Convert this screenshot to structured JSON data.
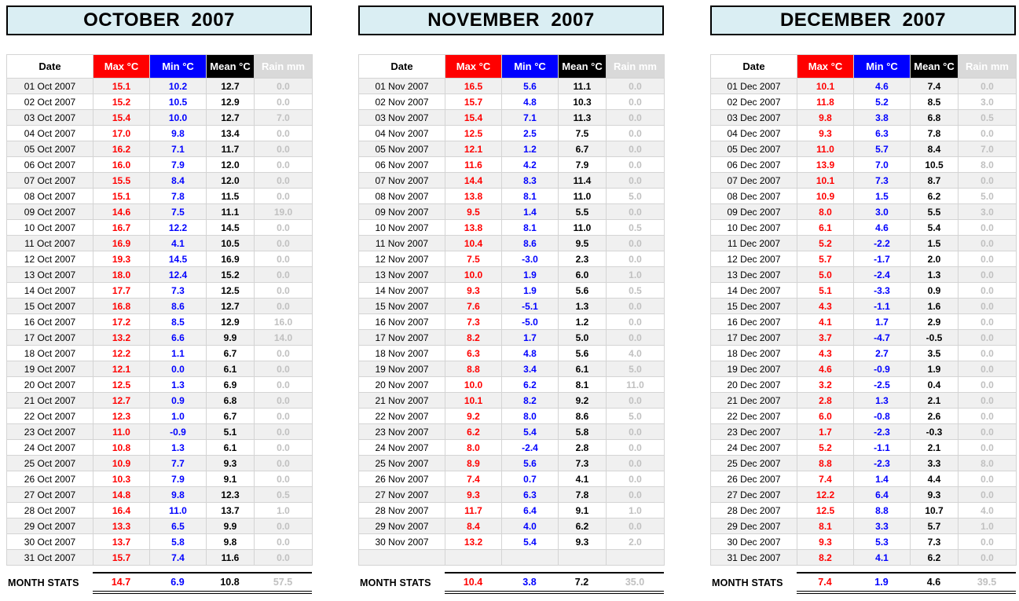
{
  "columns": [
    "Date",
    "Max °C",
    "Min °C",
    "Mean °C",
    "Rain mm"
  ],
  "stats_label": "MONTH STATS",
  "colors": {
    "max_red": "#ff0000",
    "min_blue": "#0000ff",
    "mean_black": "#000000",
    "rain_gray_text": "#c0c0c0",
    "rain_header_bg": "#d9d9d9",
    "title_bg": "#daeef3",
    "row_stripe": "#f0f0f0",
    "grid_line": "#d4d4d4"
  },
  "months": [
    {
      "title": "OCTOBER  2007",
      "rows": [
        [
          "01 Oct 2007",
          "15.1",
          "10.2",
          "12.7",
          "0.0"
        ],
        [
          "02 Oct 2007",
          "15.2",
          "10.5",
          "12.9",
          "0.0"
        ],
        [
          "03 Oct 2007",
          "15.4",
          "10.0",
          "12.7",
          "7.0"
        ],
        [
          "04 Oct 2007",
          "17.0",
          "9.8",
          "13.4",
          "0.0"
        ],
        [
          "05 Oct 2007",
          "16.2",
          "7.1",
          "11.7",
          "0.0"
        ],
        [
          "06 Oct 2007",
          "16.0",
          "7.9",
          "12.0",
          "0.0"
        ],
        [
          "07 Oct 2007",
          "15.5",
          "8.4",
          "12.0",
          "0.0"
        ],
        [
          "08 Oct 2007",
          "15.1",
          "7.8",
          "11.5",
          "0.0"
        ],
        [
          "09 Oct 2007",
          "14.6",
          "7.5",
          "11.1",
          "19.0"
        ],
        [
          "10 Oct 2007",
          "16.7",
          "12.2",
          "14.5",
          "0.0"
        ],
        [
          "11 Oct 2007",
          "16.9",
          "4.1",
          "10.5",
          "0.0"
        ],
        [
          "12 Oct 2007",
          "19.3",
          "14.5",
          "16.9",
          "0.0"
        ],
        [
          "13 Oct 2007",
          "18.0",
          "12.4",
          "15.2",
          "0.0"
        ],
        [
          "14 Oct 2007",
          "17.7",
          "7.3",
          "12.5",
          "0.0"
        ],
        [
          "15 Oct 2007",
          "16.8",
          "8.6",
          "12.7",
          "0.0"
        ],
        [
          "16 Oct 2007",
          "17.2",
          "8.5",
          "12.9",
          "16.0"
        ],
        [
          "17 Oct 2007",
          "13.2",
          "6.6",
          "9.9",
          "14.0"
        ],
        [
          "18 Oct 2007",
          "12.2",
          "1.1",
          "6.7",
          "0.0"
        ],
        [
          "19 Oct 2007",
          "12.1",
          "0.0",
          "6.1",
          "0.0"
        ],
        [
          "20 Oct 2007",
          "12.5",
          "1.3",
          "6.9",
          "0.0"
        ],
        [
          "21 Oct 2007",
          "12.7",
          "0.9",
          "6.8",
          "0.0"
        ],
        [
          "22 Oct 2007",
          "12.3",
          "1.0",
          "6.7",
          "0.0"
        ],
        [
          "23 Oct 2007",
          "11.0",
          "-0.9",
          "5.1",
          "0.0"
        ],
        [
          "24 Oct 2007",
          "10.8",
          "1.3",
          "6.1",
          "0.0"
        ],
        [
          "25 Oct 2007",
          "10.9",
          "7.7",
          "9.3",
          "0.0"
        ],
        [
          "26 Oct 2007",
          "10.3",
          "7.9",
          "9.1",
          "0.0"
        ],
        [
          "27 Oct 2007",
          "14.8",
          "9.8",
          "12.3",
          "0.5"
        ],
        [
          "28 Oct 2007",
          "16.4",
          "11.0",
          "13.7",
          "1.0"
        ],
        [
          "29 Oct 2007",
          "13.3",
          "6.5",
          "9.9",
          "0.0"
        ],
        [
          "30 Oct 2007",
          "13.7",
          "5.8",
          "9.8",
          "0.0"
        ],
        [
          "31 Oct 2007",
          "15.7",
          "7.4",
          "11.6",
          "0.0"
        ]
      ],
      "stats": {
        "max": "14.7",
        "min": "6.9",
        "mean": "10.8",
        "rain": "57.5"
      }
    },
    {
      "title": "NOVEMBER  2007",
      "rows": [
        [
          "01 Nov 2007",
          "16.5",
          "5.6",
          "11.1",
          "0.0"
        ],
        [
          "02 Nov 2007",
          "15.7",
          "4.8",
          "10.3",
          "0.0"
        ],
        [
          "03 Nov 2007",
          "15.4",
          "7.1",
          "11.3",
          "0.0"
        ],
        [
          "04 Nov 2007",
          "12.5",
          "2.5",
          "7.5",
          "0.0"
        ],
        [
          "05 Nov 2007",
          "12.1",
          "1.2",
          "6.7",
          "0.0"
        ],
        [
          "06 Nov 2007",
          "11.6",
          "4.2",
          "7.9",
          "0.0"
        ],
        [
          "07 Nov 2007",
          "14.4",
          "8.3",
          "11.4",
          "0.0"
        ],
        [
          "08 Nov 2007",
          "13.8",
          "8.1",
          "11.0",
          "5.0"
        ],
        [
          "09 Nov 2007",
          "9.5",
          "1.4",
          "5.5",
          "0.0"
        ],
        [
          "10 Nov 2007",
          "13.8",
          "8.1",
          "11.0",
          "0.5"
        ],
        [
          "11 Nov 2007",
          "10.4",
          "8.6",
          "9.5",
          "0.0"
        ],
        [
          "12 Nov 2007",
          "7.5",
          "-3.0",
          "2.3",
          "0.0"
        ],
        [
          "13 Nov 2007",
          "10.0",
          "1.9",
          "6.0",
          "1.0"
        ],
        [
          "14 Nov 2007",
          "9.3",
          "1.9",
          "5.6",
          "0.5"
        ],
        [
          "15 Nov 2007",
          "7.6",
          "-5.1",
          "1.3",
          "0.0"
        ],
        [
          "16 Nov 2007",
          "7.3",
          "-5.0",
          "1.2",
          "0.0"
        ],
        [
          "17 Nov 2007",
          "8.2",
          "1.7",
          "5.0",
          "0.0"
        ],
        [
          "18 Nov 2007",
          "6.3",
          "4.8",
          "5.6",
          "4.0"
        ],
        [
          "19 Nov 2007",
          "8.8",
          "3.4",
          "6.1",
          "5.0"
        ],
        [
          "20 Nov 2007",
          "10.0",
          "6.2",
          "8.1",
          "11.0"
        ],
        [
          "21 Nov 2007",
          "10.1",
          "8.2",
          "9.2",
          "0.0"
        ],
        [
          "22 Nov 2007",
          "9.2",
          "8.0",
          "8.6",
          "5.0"
        ],
        [
          "23 Nov 2007",
          "6.2",
          "5.4",
          "5.8",
          "0.0"
        ],
        [
          "24 Nov 2007",
          "8.0",
          "-2.4",
          "2.8",
          "0.0"
        ],
        [
          "25 Nov 2007",
          "8.9",
          "5.6",
          "7.3",
          "0.0"
        ],
        [
          "26 Nov 2007",
          "7.4",
          "0.7",
          "4.1",
          "0.0"
        ],
        [
          "27 Nov 2007",
          "9.3",
          "6.3",
          "7.8",
          "0.0"
        ],
        [
          "28 Nov 2007",
          "11.7",
          "6.4",
          "9.1",
          "1.0"
        ],
        [
          "29 Nov 2007",
          "8.4",
          "4.0",
          "6.2",
          "0.0"
        ],
        [
          "30 Nov 2007",
          "13.2",
          "5.4",
          "9.3",
          "2.0"
        ],
        [
          "",
          "",
          "",
          "",
          ""
        ]
      ],
      "stats": {
        "max": "10.4",
        "min": "3.8",
        "mean": "7.2",
        "rain": "35.0"
      }
    },
    {
      "title": "DECEMBER  2007",
      "rows": [
        [
          "01 Dec 2007",
          "10.1",
          "4.6",
          "7.4",
          "0.0"
        ],
        [
          "02 Dec 2007",
          "11.8",
          "5.2",
          "8.5",
          "3.0"
        ],
        [
          "03 Dec 2007",
          "9.8",
          "3.8",
          "6.8",
          "0.5"
        ],
        [
          "04 Dec 2007",
          "9.3",
          "6.3",
          "7.8",
          "0.0"
        ],
        [
          "05 Dec 2007",
          "11.0",
          "5.7",
          "8.4",
          "7.0"
        ],
        [
          "06 Dec 2007",
          "13.9",
          "7.0",
          "10.5",
          "8.0"
        ],
        [
          "07 Dec 2007",
          "10.1",
          "7.3",
          "8.7",
          "0.0"
        ],
        [
          "08 Dec 2007",
          "10.9",
          "1.5",
          "6.2",
          "5.0"
        ],
        [
          "09 Dec 2007",
          "8.0",
          "3.0",
          "5.5",
          "3.0"
        ],
        [
          "10 Dec 2007",
          "6.1",
          "4.6",
          "5.4",
          "0.0"
        ],
        [
          "11 Dec 2007",
          "5.2",
          "-2.2",
          "1.5",
          "0.0"
        ],
        [
          "12 Dec 2007",
          "5.7",
          "-1.7",
          "2.0",
          "0.0"
        ],
        [
          "13 Dec 2007",
          "5.0",
          "-2.4",
          "1.3",
          "0.0"
        ],
        [
          "14 Dec 2007",
          "5.1",
          "-3.3",
          "0.9",
          "0.0"
        ],
        [
          "15 Dec 2007",
          "4.3",
          "-1.1",
          "1.6",
          "0.0"
        ],
        [
          "16 Dec 2007",
          "4.1",
          "1.7",
          "2.9",
          "0.0"
        ],
        [
          "17 Dec 2007",
          "3.7",
          "-4.7",
          "-0.5",
          "0.0"
        ],
        [
          "18 Dec 2007",
          "4.3",
          "2.7",
          "3.5",
          "0.0"
        ],
        [
          "19 Dec 2007",
          "4.6",
          "-0.9",
          "1.9",
          "0.0"
        ],
        [
          "20 Dec 2007",
          "3.2",
          "-2.5",
          "0.4",
          "0.0"
        ],
        [
          "21 Dec 2007",
          "2.8",
          "1.3",
          "2.1",
          "0.0"
        ],
        [
          "22 Dec 2007",
          "6.0",
          "-0.8",
          "2.6",
          "0.0"
        ],
        [
          "23 Dec 2007",
          "1.7",
          "-2.3",
          "-0.3",
          "0.0"
        ],
        [
          "24 Dec 2007",
          "5.2",
          "-1.1",
          "2.1",
          "0.0"
        ],
        [
          "25 Dec 2007",
          "8.8",
          "-2.3",
          "3.3",
          "8.0"
        ],
        [
          "26 Dec 2007",
          "7.4",
          "1.4",
          "4.4",
          "0.0"
        ],
        [
          "27 Dec 2007",
          "12.2",
          "6.4",
          "9.3",
          "0.0"
        ],
        [
          "28 Dec 2007",
          "12.5",
          "8.8",
          "10.7",
          "4.0"
        ],
        [
          "29 Dec 2007",
          "8.1",
          "3.3",
          "5.7",
          "1.0"
        ],
        [
          "30 Dec 2007",
          "9.3",
          "5.3",
          "7.3",
          "0.0"
        ],
        [
          "31 Dec 2007",
          "8.2",
          "4.1",
          "6.2",
          "0.0"
        ]
      ],
      "stats": {
        "max": "7.4",
        "min": "1.9",
        "mean": "4.6",
        "rain": "39.5"
      }
    }
  ]
}
